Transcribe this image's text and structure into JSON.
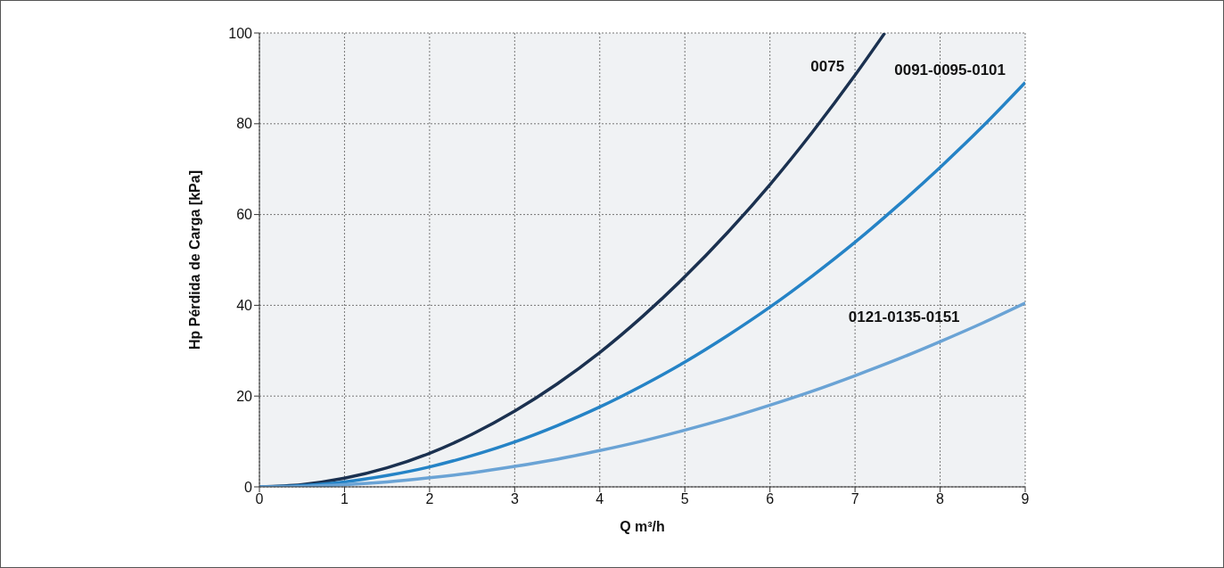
{
  "chart_data": {
    "type": "line",
    "xlabel": "Q m³/h",
    "ylabel": "Hp Pérdida de Carga [kPa]",
    "xlim": [
      0,
      9
    ],
    "xticks": [
      0,
      1,
      2,
      3,
      4,
      5,
      6,
      7,
      8,
      9
    ],
    "ylim": [
      0,
      100
    ],
    "yticks": [
      0,
      20,
      40,
      60,
      80,
      100
    ],
    "grid": true,
    "legend": false,
    "marker": "none",
    "line_style": "solid",
    "series": [
      {
        "name": "0075",
        "color": "#1b3150",
        "x": [
          0,
          0.5,
          1,
          1.5,
          2,
          2.5,
          3,
          3.5,
          4,
          4.5,
          5,
          5.5,
          6,
          6.5,
          7,
          7.35
        ],
        "values": [
          0,
          0.5,
          1.9,
          4.2,
          7.4,
          11.6,
          16.7,
          22.7,
          29.6,
          37.5,
          46.3,
          56,
          66.6,
          78.2,
          90.7,
          100
        ]
      },
      {
        "name": "0091-0095-0101",
        "color": "#2583c6",
        "x": [
          0,
          0.5,
          1,
          1.5,
          2,
          2.5,
          3,
          3.5,
          4,
          4.5,
          5,
          5.5,
          6,
          6.5,
          7,
          7.5,
          8,
          8.5,
          9
        ],
        "values": [
          0,
          0.3,
          1.1,
          2.5,
          4.4,
          6.9,
          9.9,
          13.5,
          17.6,
          22.3,
          27.5,
          33.3,
          39.6,
          46.5,
          53.9,
          61.9,
          70.4,
          79.4,
          89.1
        ]
      },
      {
        "name": "0121-0135-0151",
        "color": "#6aa3d5",
        "x": [
          0,
          0.5,
          1,
          1.5,
          2,
          2.5,
          3,
          3.5,
          4,
          4.5,
          5,
          5.5,
          6,
          6.5,
          7,
          7.5,
          8,
          8.5,
          9
        ],
        "values": [
          0,
          0.1,
          0.5,
          1.1,
          2,
          3.1,
          4.5,
          6.1,
          8,
          10.1,
          12.5,
          15.1,
          18,
          21.1,
          24.5,
          28.1,
          32,
          36.1,
          40.5
        ]
      }
    ]
  }
}
